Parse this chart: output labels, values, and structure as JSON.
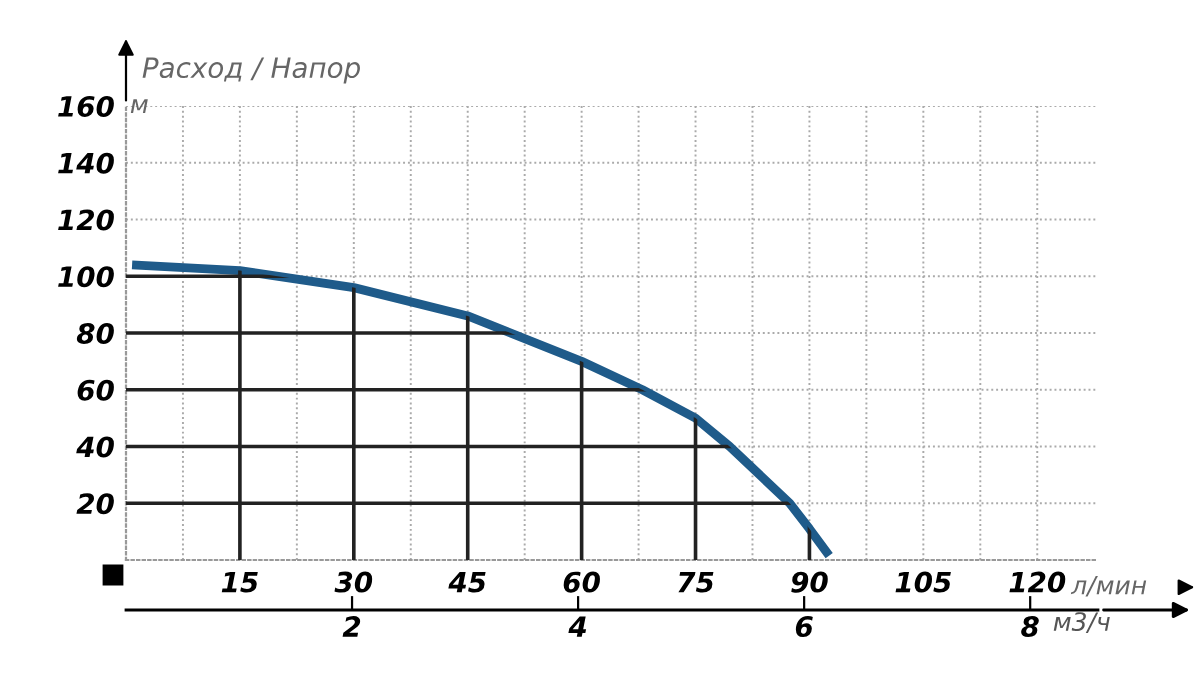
{
  "chart_data": {
    "type": "line",
    "title": "Расход / Напор",
    "xlabel": "л/мин",
    "ylabel": "м",
    "x2label": "м3/ч",
    "series": [
      {
        "color": "#1f5b8a",
        "x": [
          0.8,
          15,
          30,
          45,
          60,
          68,
          75,
          79.5,
          87.4,
          90,
          92.6
        ],
        "values": [
          104,
          102,
          96,
          86,
          70,
          60,
          50,
          40,
          20,
          11,
          1.5
        ]
      }
    ],
    "xlim": [
      0,
      128
    ],
    "ylim": [
      0,
      160
    ],
    "xticks": [
      {
        "value": 7.5,
        "label": null
      },
      15,
      {
        "value": 22.5,
        "label": null
      },
      30,
      {
        "value": 37.5,
        "label": null
      },
      45,
      {
        "value": 52.5,
        "label": null
      },
      60,
      {
        "value": 67.5,
        "label": null
      },
      75,
      {
        "value": 82.5,
        "label": null
      },
      90,
      {
        "value": 97.5,
        "label": null
      },
      105,
      {
        "value": 112.5,
        "label": null
      },
      120
    ],
    "yticks": [
      20,
      40,
      60,
      80,
      100,
      120,
      140,
      160
    ],
    "x2lim": [
      0,
      8.6
    ],
    "x2ticks": [
      2,
      4,
      6,
      8
    ],
    "grid": true,
    "marker": "none",
    "line_style": "solid"
  }
}
